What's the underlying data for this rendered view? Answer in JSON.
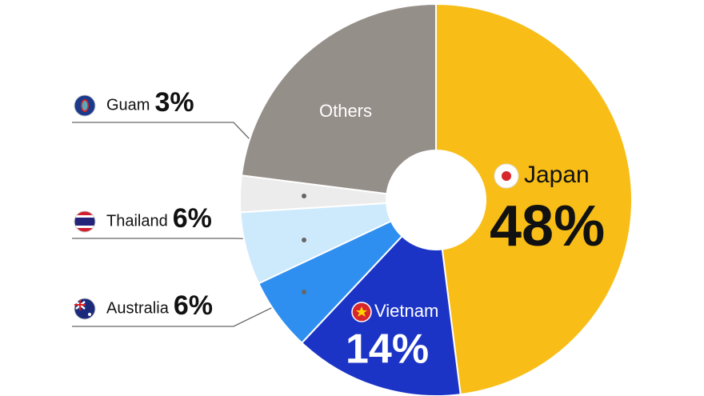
{
  "chart_data": {
    "type": "donut",
    "categories": [
      "Japan",
      "Vietnam",
      "Australia",
      "Thailand",
      "Guam",
      "Others"
    ],
    "values": [
      48,
      14,
      6,
      6,
      3,
      23
    ],
    "value_labels": [
      "48%",
      "14%",
      "6%",
      "6%",
      "3%",
      null
    ],
    "colors": [
      "#f8be17",
      "#1c34c6",
      "#2f8ff0",
      "#cde9fc",
      "#ececec",
      "#958f8a"
    ]
  }
}
